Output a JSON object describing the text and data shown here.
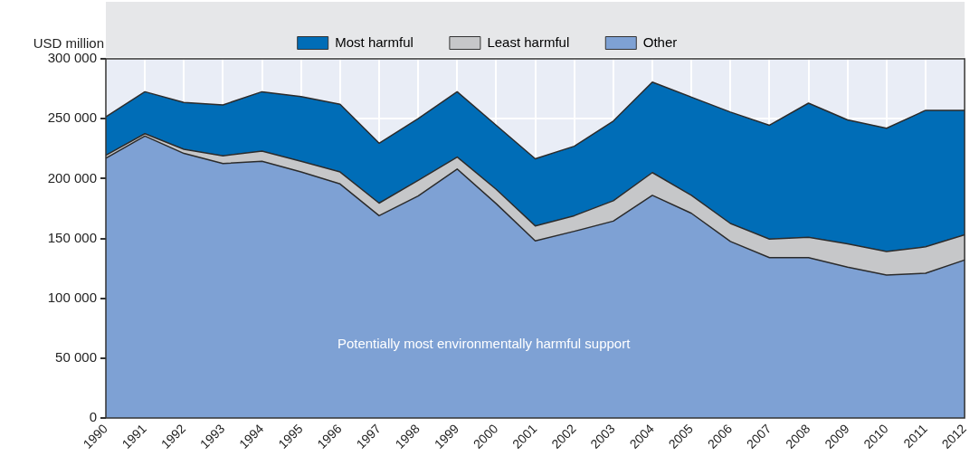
{
  "chart_data": {
    "type": "area",
    "stacked": true,
    "ylabel": "USD million",
    "categories": [
      "1990",
      "1991",
      "1992",
      "1993",
      "1994",
      "1995",
      "1996",
      "1997",
      "1998",
      "1999",
      "2000",
      "2001",
      "2002",
      "2003",
      "2004",
      "2005",
      "2006",
      "2007",
      "2008",
      "2009",
      "2010",
      "2011",
      "2012"
    ],
    "series": [
      {
        "name": "Other",
        "color": "#7ea1d4",
        "values": [
          217000,
          235500,
          221000,
          212500,
          214500,
          205500,
          195500,
          169000,
          185500,
          208000,
          179000,
          148000,
          156000,
          164500,
          186000,
          171000,
          147500,
          134000,
          134000,
          126000,
          119500,
          121000,
          132000
        ]
      },
      {
        "name": "Least harmful",
        "color": "#c6c7c9",
        "values": [
          2500,
          2000,
          3500,
          6500,
          8500,
          9000,
          10000,
          10500,
          13000,
          10000,
          12000,
          12500,
          13000,
          17000,
          19000,
          15000,
          15000,
          15500,
          17000,
          19500,
          19500,
          22000,
          21000
        ]
      },
      {
        "name": "Most harmful",
        "color": "#006db7",
        "values": [
          32000,
          35000,
          39000,
          42500,
          49500,
          54000,
          56500,
          50000,
          51500,
          54500,
          53500,
          56000,
          58000,
          66500,
          75500,
          82000,
          93000,
          95000,
          112000,
          103500,
          103000,
          114000,
          104000
        ]
      }
    ],
    "ylim": [
      0,
      300000
    ],
    "yticks": [
      0,
      {
        "value": 50000,
        "label": "50 000"
      },
      {
        "value": 100000,
        "label": "100 000"
      },
      {
        "value": 150000,
        "label": "150 000"
      },
      {
        "value": 200000,
        "label": "200 000"
      },
      {
        "value": 250000,
        "label": "250 000"
      },
      {
        "value": 300000,
        "label": "300 000"
      }
    ],
    "grid": true,
    "legend": "top",
    "annotations": [
      "Potentially most environmentally harmful support"
    ]
  }
}
